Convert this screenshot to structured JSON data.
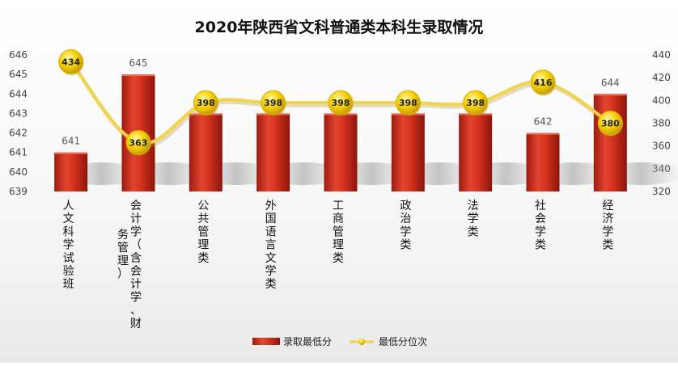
{
  "chart_data": {
    "type": "bar",
    "title": "2020年陕西省文科普通类本科生录取情况",
    "categories": [
      "人文科学试验班",
      "会计学（含会计学、财务管理）",
      "公共管理类",
      "外国语言文学类",
      "工商管理类",
      "政治学类",
      "法学类",
      "社会学类",
      "经济学类"
    ],
    "category_lines": [
      [
        "人文科学试验班"
      ],
      [
        "会计学（含会计学、财",
        "务管理）"
      ],
      [
        "公共管理类"
      ],
      [
        "外国语言文学类"
      ],
      [
        "工商管理类"
      ],
      [
        "政治学类"
      ],
      [
        "法学类"
      ],
      [
        "社会学类"
      ],
      [
        "经济学类"
      ]
    ],
    "series": [
      {
        "name": "录取最低分",
        "type": "bar",
        "axis": "left",
        "values": [
          641,
          645,
          643,
          643,
          643,
          643,
          643,
          642,
          644
        ],
        "color": "#c9281b"
      },
      {
        "name": "最低分位次",
        "type": "line",
        "axis": "right",
        "values": [
          434,
          363,
          398,
          398,
          398,
          398,
          398,
          416,
          380
        ],
        "color": "#f2d34a"
      }
    ],
    "y_left": {
      "min": 639,
      "max": 646,
      "ticks": [
        "639",
        "640",
        "641",
        "642",
        "643",
        "644",
        "645",
        "646"
      ]
    },
    "y_right": {
      "min": 320,
      "max": 440,
      "ticks": [
        "320",
        "340",
        "360",
        "380",
        "400",
        "420",
        "440"
      ]
    },
    "legend_position": "bottom",
    "grid": false
  }
}
